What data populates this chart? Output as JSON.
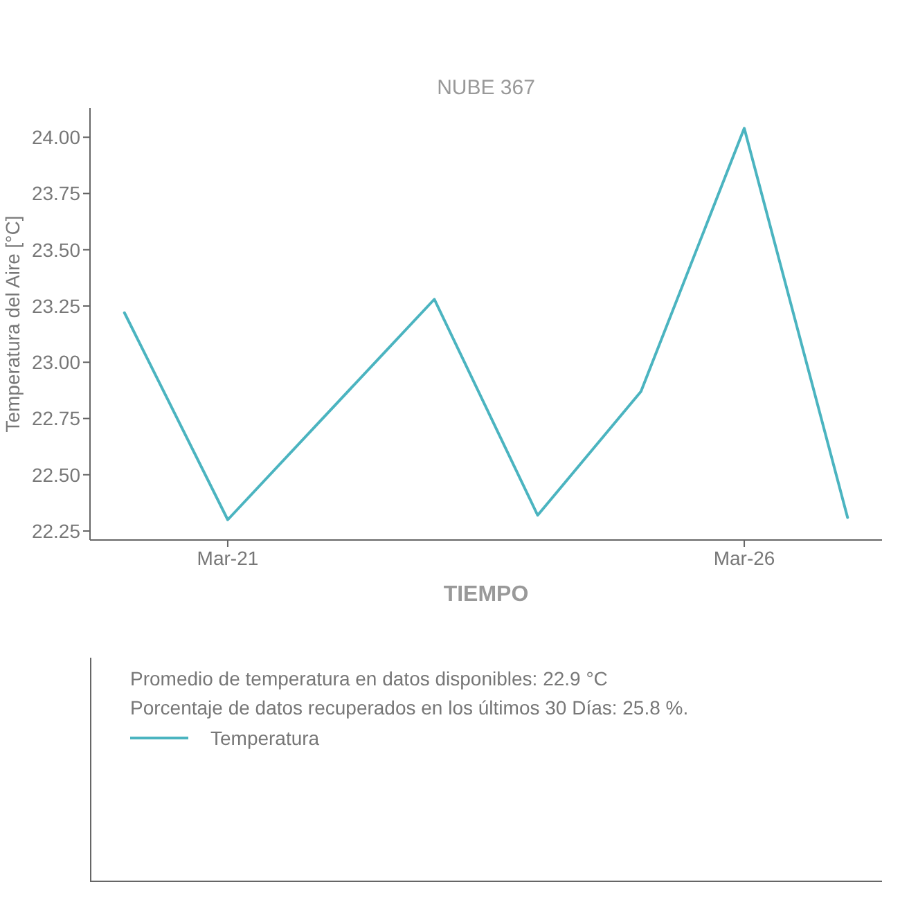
{
  "chart_data": {
    "type": "line",
    "title": "NUBE 367",
    "xlabel": "TIEMPO",
    "ylabel": "Temperatura del Aire [°C]",
    "x": [
      "--03-20",
      "--03-21",
      "--03-23",
      "--03-24",
      "--03-25",
      "--03-26",
      "--03-27"
    ],
    "series": [
      {
        "name": "Temperatura",
        "color": "#4bb4c0",
        "values": [
          23.22,
          22.3,
          23.28,
          22.32,
          22.87,
          24.04,
          22.31
        ]
      }
    ],
    "xlim": [
      "--03-19T16:00",
      "--03-27T08:00"
    ],
    "xticks": [
      {
        "value": "--03-21",
        "label": "Mar-21"
      },
      {
        "value": "--03-26",
        "label": "Mar-26"
      }
    ],
    "ylim": [
      22.21,
      24.13
    ],
    "yticks": [
      {
        "value": 22.25,
        "label": "22.25"
      },
      {
        "value": 22.5,
        "label": "22.50"
      },
      {
        "value": 22.75,
        "label": "22.75"
      },
      {
        "value": 23,
        "label": "23.00"
      },
      {
        "value": 23.25,
        "label": "23.25"
      },
      {
        "value": 23.5,
        "label": "23.50"
      },
      {
        "value": 23.75,
        "label": "23.75"
      },
      {
        "value": 24,
        "label": "24.00"
      }
    ],
    "annotations": [
      "Promedio de temperatura en datos disponibles: 22.9 °C",
      "Porcentaje de datos recuperados en los últimos 30 Días: 25.8 %."
    ],
    "legend": "bottom",
    "grid": false
  }
}
